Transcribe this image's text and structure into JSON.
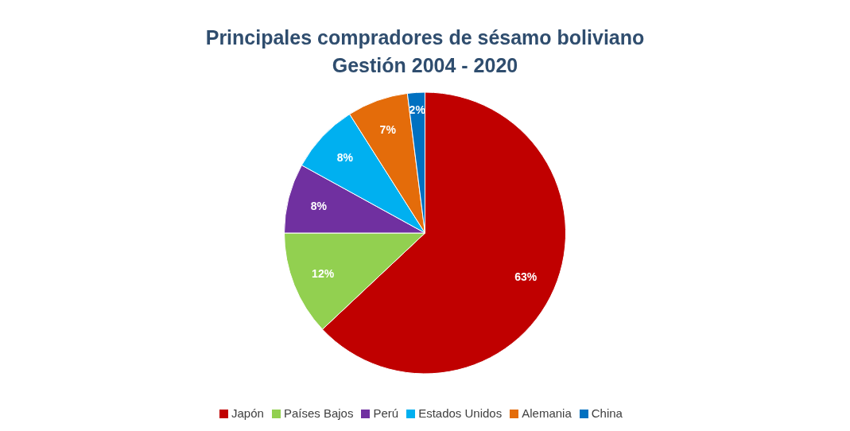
{
  "chart_data": {
    "type": "pie",
    "title": "Principales compradores de sésamo boliviano\nGestión 2004 - 2020",
    "categories": [
      "Japón",
      "Países Bajos",
      "Perú",
      "Estados Unidos",
      "Alemania",
      "China"
    ],
    "values": [
      63,
      12,
      8,
      8,
      7,
      2
    ],
    "value_labels": [
      "63%",
      "12%",
      "8%",
      "8%",
      "7%",
      "2%"
    ],
    "colors": [
      "#c00000",
      "#92d050",
      "#7030a0",
      "#00b0f0",
      "#e46c0a",
      "#0070c0"
    ],
    "legend": "bottom"
  }
}
